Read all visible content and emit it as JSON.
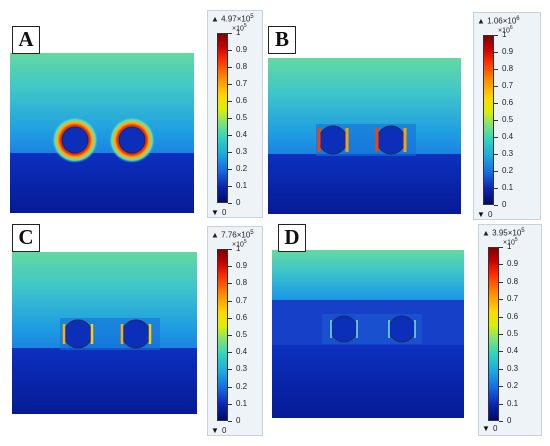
{
  "panels": [
    {
      "letter": "A",
      "max_label": "4.97×10",
      "max_exp": "5",
      "sub_exp": "×10",
      "sub_exp_pow": "5",
      "min_label": "0"
    },
    {
      "letter": "B",
      "max_label": "1.06×10",
      "max_exp": "6",
      "sub_exp": "×10",
      "sub_exp_pow": "6",
      "min_label": "0"
    },
    {
      "letter": "C",
      "max_label": "7.76×10",
      "max_exp": "5",
      "sub_exp": "×10",
      "sub_exp_pow": "5",
      "min_label": "0"
    },
    {
      "letter": "D",
      "max_label": "3.95×10",
      "max_exp": "5",
      "sub_exp": "×10",
      "sub_exp_pow": "5",
      "min_label": "0"
    }
  ],
  "colorbar_ticks": [
    "1",
    "0.9",
    "0.8",
    "0.7",
    "0.6",
    "0.5",
    "0.4",
    "0.3",
    "0.2",
    "0.1",
    "0"
  ],
  "colors": {
    "field_top": "#5fd6a0",
    "field_mid": "#1a9ee0",
    "substrate": "#0a1fa8",
    "hotspot": "#ff2200"
  }
}
